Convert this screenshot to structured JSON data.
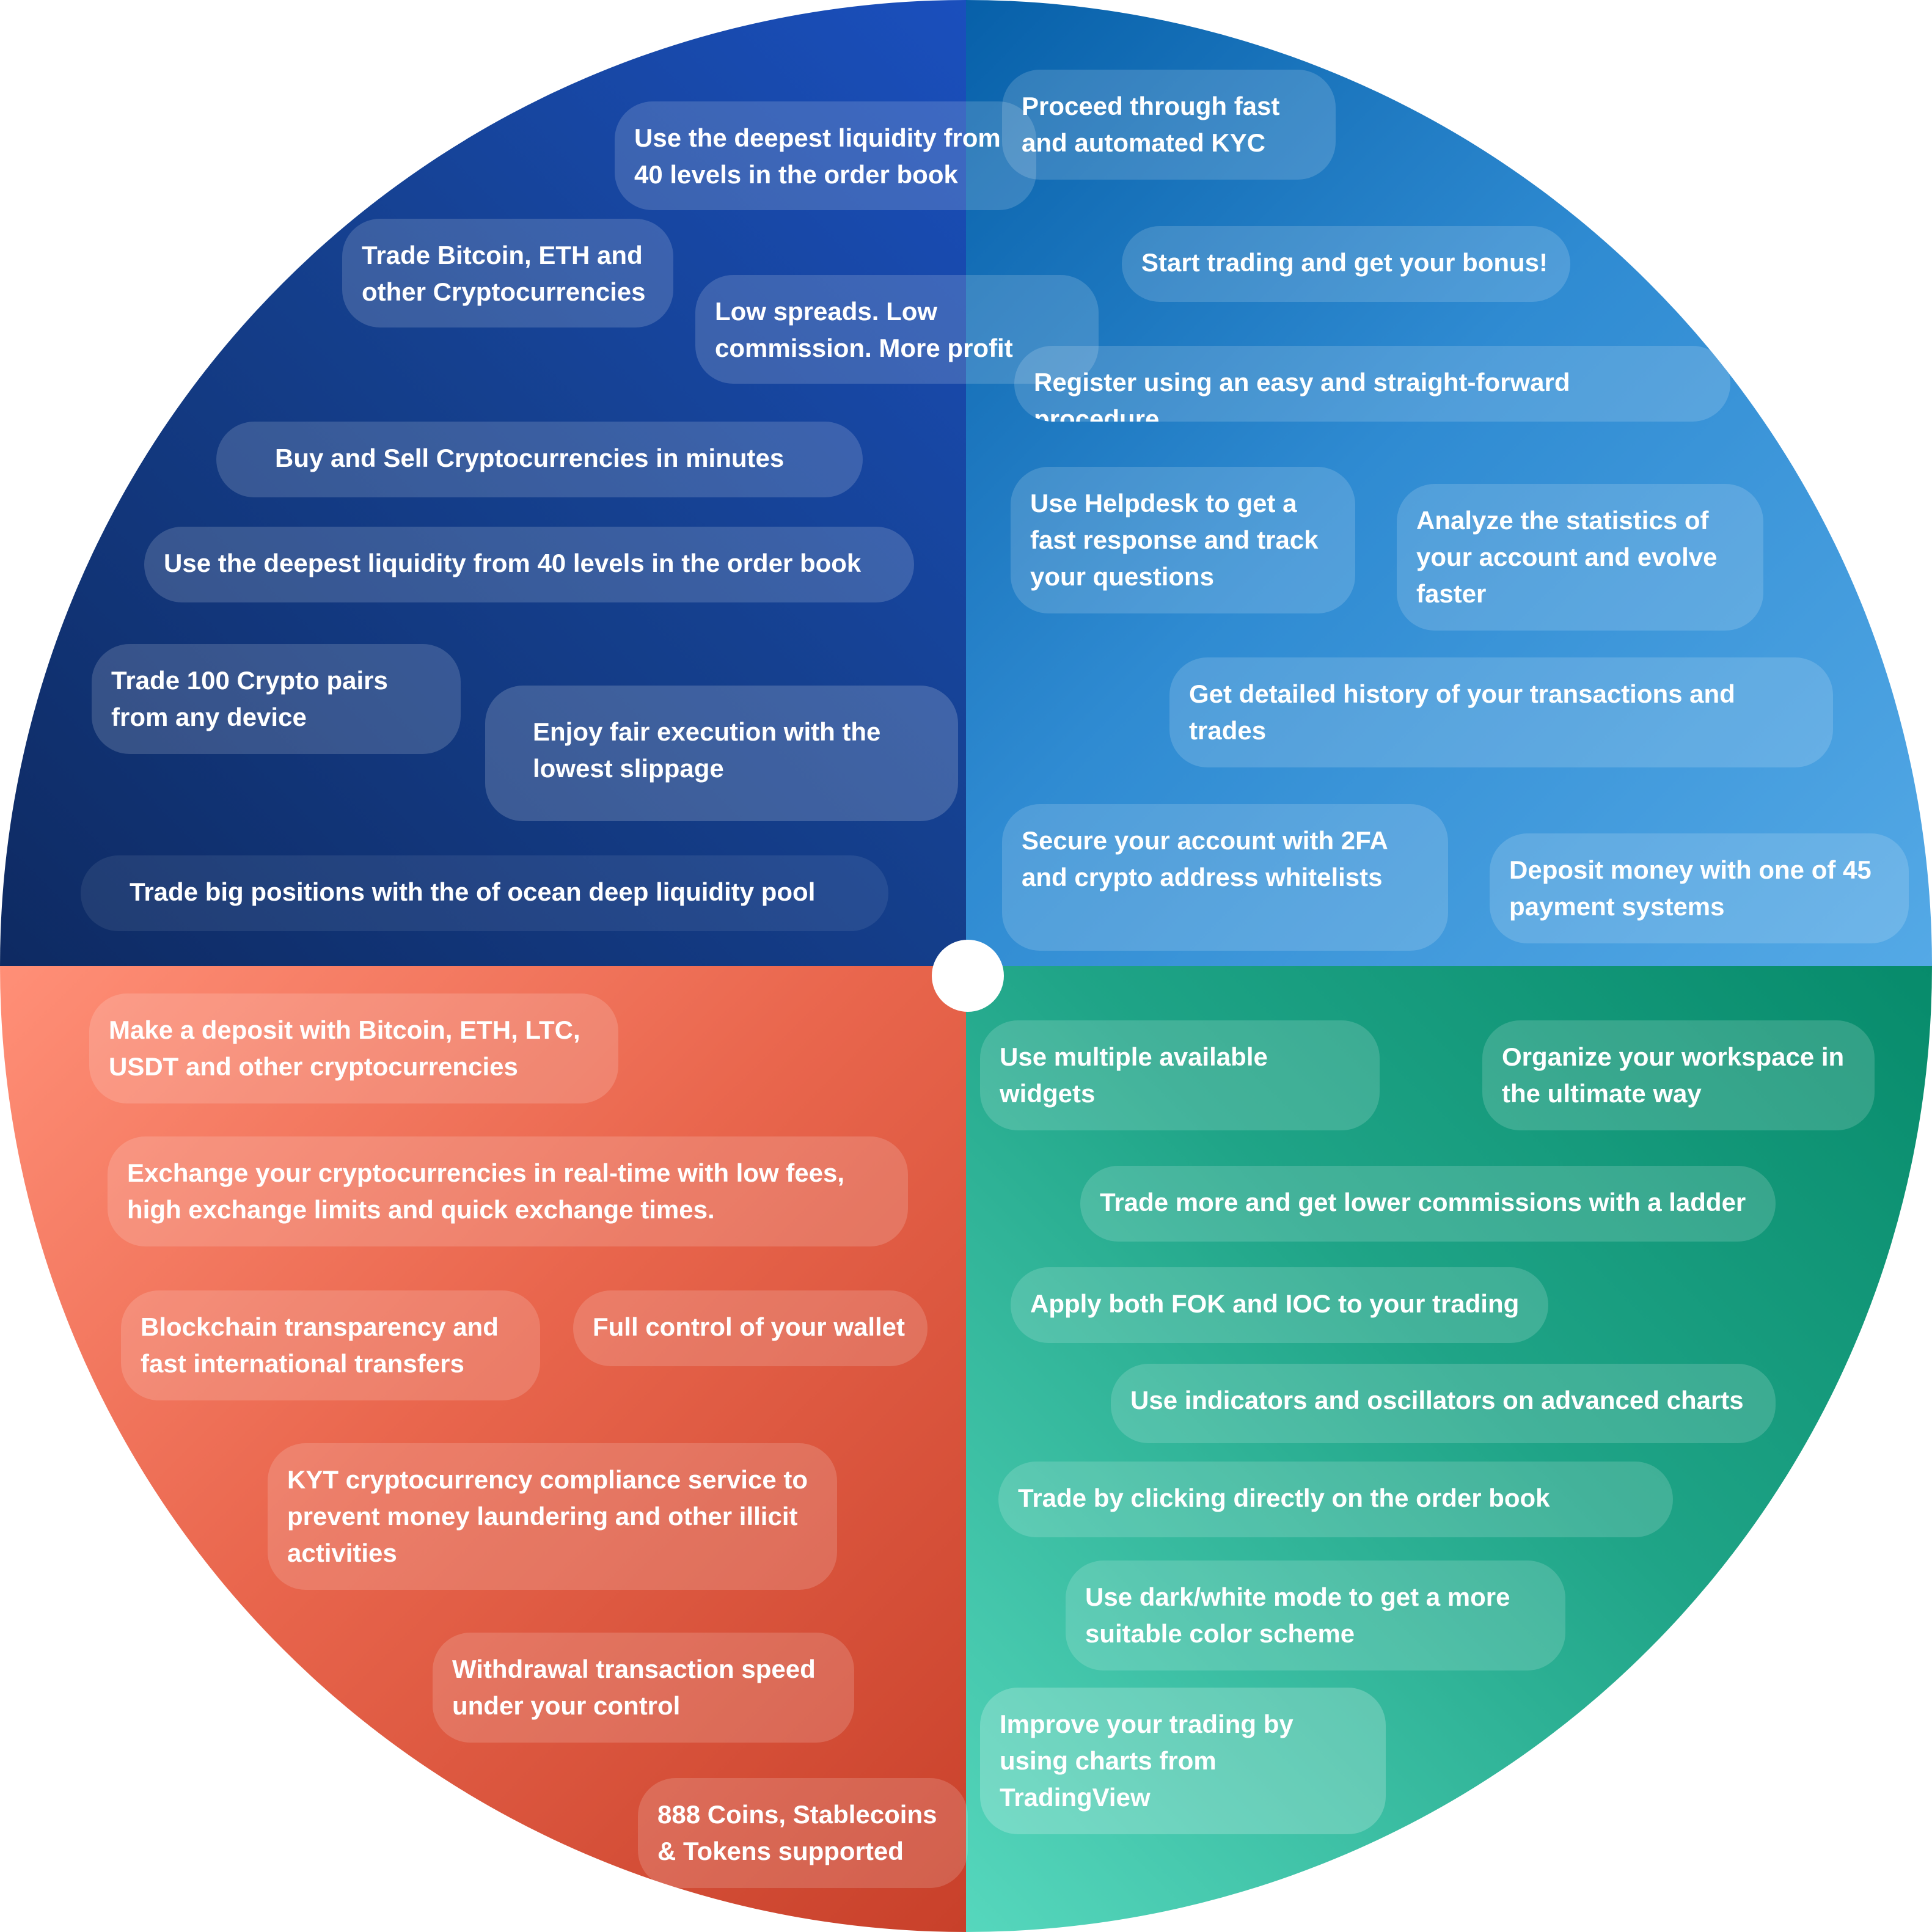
{
  "items": {
    "tl": [
      "Use the deepest liquidity from\n40 levels in the order book",
      "Trade Bitcoin, ETH and\nother Cryptocurrencies",
      "Low spreads. Low\ncommission. More profit",
      "Buy and Sell Cryptocurrencies in minutes",
      "Use the deepest liquidity from 40 levels in the order book",
      "Trade 100 Crypto pairs\nfrom any device",
      "Enjoy fair execution with the\nlowest slippage",
      "Trade big positions with the of ocean deep liquidity pool"
    ],
    "tr": [
      "Proceed through fast\nand automated KYC",
      "Start trading and get your bonus!",
      "Register using an easy and straight-forward\nprocedure",
      "Use Helpdesk to get a\nfast response and track\nyour questions",
      "Analyze the statistics of\nyour account and evolve\nfaster",
      "Get detailed history of your transactions and\ntrades",
      "Secure your account with 2FA\nand crypto address whitelists",
      "Deposit money with one of 45\npayment systems"
    ],
    "bl": [
      "Make a deposit with Bitcoin, ETH, LTC,\nUSDT and other cryptocurrencies",
      "Exchange your cryptocurrencies in real-time with low fees,\nhigh exchange limits and quick exchange times.",
      "Blockchain transparency and\nfast international transfers",
      "Full control of your wallet",
      "KYT cryptocurrency compliance service to\nprevent money laundering and other illicit\nactivities",
      "Withdrawal transaction speed\nunder your control",
      "888 Coins, Stablecoins\n& Tokens supported"
    ],
    "br": [
      "Use multiple available\nwidgets",
      "Organize your workspace in\nthe ultimate way",
      "Trade more and get lower commissions with a ladder",
      "Apply both FOK and IOC to your trading",
      "Use indicators and oscillators on advanced charts",
      "Trade by clicking directly on the order book",
      "Use dark/white mode to get a more\nsuitable color scheme",
      "Improve your trading by\nusing charts from\nTradingView"
    ]
  },
  "colors": {
    "top_left": "#15408f",
    "top_right": "#2f8bd2",
    "bottom_left": "#e9664d",
    "bottom_right": "#1fa487",
    "hub": "#ffffff"
  }
}
